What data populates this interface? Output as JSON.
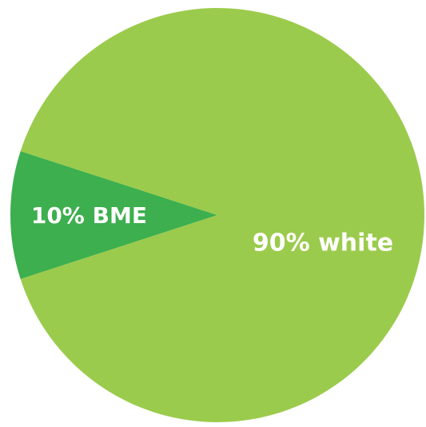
{
  "chart_data": {
    "type": "pie",
    "slices": [
      {
        "value": 10,
        "label": "10% BME",
        "color": "#3daf4e"
      },
      {
        "value": 90,
        "label": "90% white",
        "color": "#9bcb4c"
      }
    ],
    "title": "",
    "legend": false
  }
}
